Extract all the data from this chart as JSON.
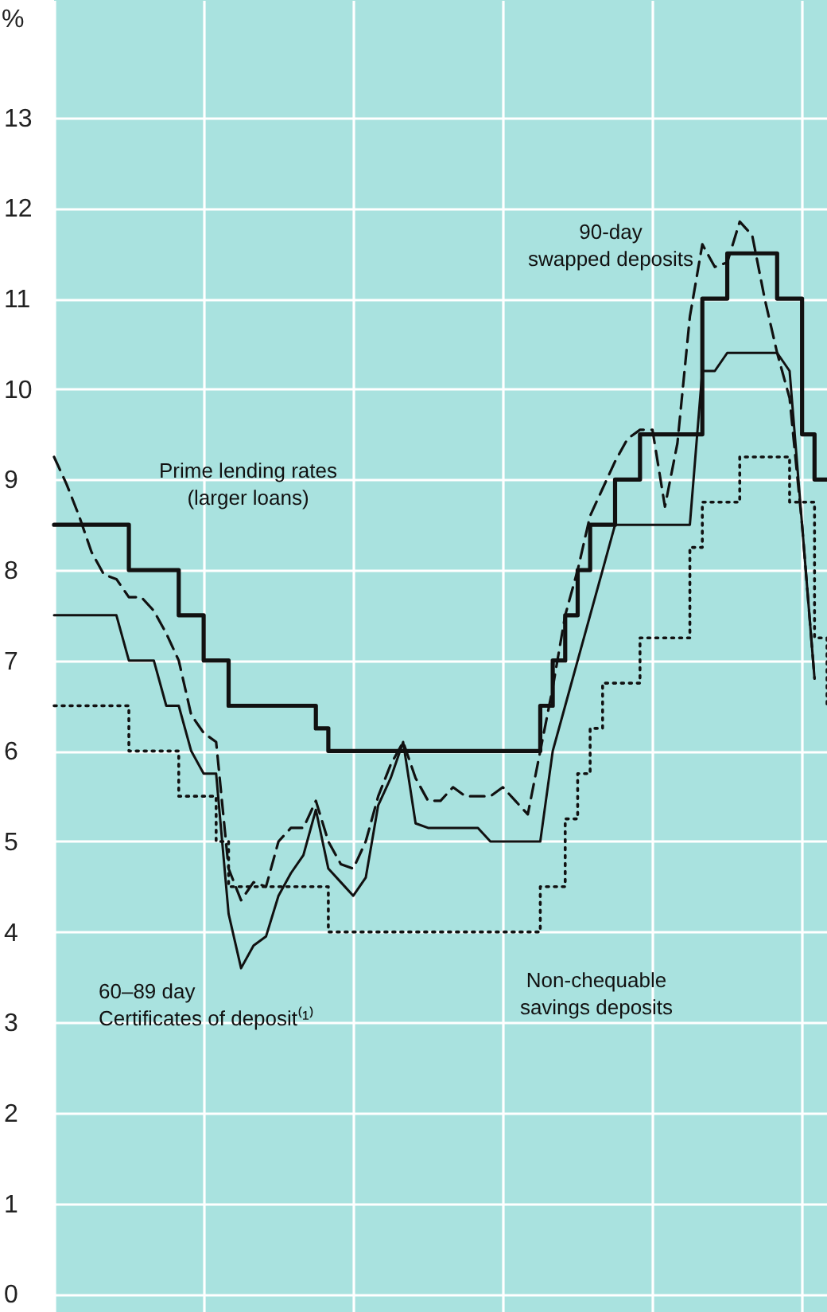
{
  "chart_data": {
    "type": "line",
    "ylabel": "%",
    "categories": [
      null,
      null,
      null,
      null,
      null,
      null,
      null,
      null,
      null,
      null,
      null,
      null,
      null,
      null,
      null,
      null,
      null,
      null,
      null,
      null,
      null,
      null,
      null,
      null,
      null,
      null,
      null,
      null,
      null,
      null,
      null,
      null,
      null,
      null,
      null,
      null,
      null,
      null,
      null,
      null,
      null,
      null,
      null,
      null,
      null,
      null,
      null,
      null,
      null,
      null,
      null,
      null,
      null,
      null,
      null,
      null,
      null,
      null,
      null,
      null,
      null,
      null,
      null
    ],
    "ylim": [
      -0.2,
      14.3
    ],
    "yticks": [
      0,
      1,
      2,
      3,
      4,
      5,
      6,
      7,
      8,
      9,
      10,
      11,
      12,
      13
    ],
    "grid": true,
    "tick_labels": "y",
    "series": [
      {
        "name": "Prime lending rates\n(larger loans)",
        "type": "step",
        "color": "#111111",
        "line_style": "solid",
        "values": [
          8.5,
          8.5,
          8.5,
          8.5,
          8.5,
          8.5,
          8,
          8,
          8,
          8,
          7.5,
          7.5,
          7,
          7,
          6.5,
          6.5,
          6.5,
          6.5,
          6.5,
          6.5,
          6.5,
          6.25,
          6,
          6,
          6,
          6,
          6,
          6,
          6,
          6,
          6,
          6,
          6,
          6,
          6,
          6,
          6,
          6,
          6,
          6.5,
          7,
          7.5,
          8,
          8.5,
          8.5,
          9,
          9,
          9.5,
          9.5,
          9.5,
          9.5,
          9.5,
          11,
          11,
          11.5,
          11.5,
          11.5,
          11.5,
          11,
          11,
          9.5,
          9,
          9
        ]
      },
      {
        "name": "90-day\nswapped deposits",
        "color": "#111111",
        "line_style": "dashed",
        "values": [
          9.25,
          8.95,
          8.6,
          8.2,
          7.95,
          7.9,
          7.7,
          7.7,
          7.55,
          7.3,
          7.0,
          6.4,
          6.2,
          6.1,
          4.7,
          4.35,
          4.55,
          4.5,
          5.0,
          5.15,
          5.15,
          5.45,
          5.0,
          4.75,
          4.7,
          5.0,
          5.5,
          5.85,
          6.1,
          5.7,
          5.45,
          5.45,
          5.6,
          5.5,
          5.5,
          5.5,
          5.6,
          5.45,
          5.3,
          6.0,
          6.7,
          7.5,
          8.0,
          8.6,
          8.9,
          9.2,
          9.45,
          9.55,
          9.55,
          8.7,
          9.4,
          10.8,
          11.6,
          11.35,
          11.4,
          11.85,
          11.7,
          11.0,
          10.4,
          9.9,
          8.5,
          6.8,
          null
        ]
      },
      {
        "name": "60–89 day\nCertificates of deposit⁽¹⁾",
        "color": "#111111",
        "line_style": "solid",
        "values": [
          7.5,
          7.5,
          7.5,
          7.5,
          7.5,
          7.5,
          7.0,
          7.0,
          7.0,
          6.5,
          6.5,
          6.0,
          5.75,
          5.75,
          4.2,
          3.6,
          3.85,
          3.95,
          4.4,
          4.65,
          4.85,
          5.35,
          4.7,
          4.55,
          4.4,
          4.6,
          5.4,
          5.7,
          6.1,
          5.2,
          5.15,
          5.15,
          5.15,
          5.15,
          5.15,
          5.0,
          5.0,
          5.0,
          5.0,
          5.0,
          6.0,
          6.5,
          7.0,
          7.5,
          8.0,
          8.5,
          8.5,
          8.5,
          8.5,
          8.5,
          8.5,
          8.5,
          10.2,
          10.2,
          10.4,
          10.4,
          10.4,
          10.4,
          10.4,
          10.2,
          8.5,
          6.8,
          null
        ]
      },
      {
        "name": "Non-chequable\nsavings deposits",
        "type": "step",
        "color": "#111111",
        "line_style": "dotted",
        "values": [
          6.5,
          6.5,
          6.5,
          6.5,
          6.5,
          6.5,
          6.0,
          6.0,
          6.0,
          6.0,
          5.5,
          5.5,
          5.5,
          5.0,
          4.5,
          4.5,
          4.5,
          4.5,
          4.5,
          4.5,
          4.5,
          4.5,
          4.0,
          4.0,
          4.0,
          4.0,
          4.0,
          4.0,
          4.0,
          4.0,
          4.0,
          4.0,
          4.0,
          4.0,
          4.0,
          4.0,
          4.0,
          4.0,
          4.0,
          4.5,
          4.5,
          5.25,
          5.75,
          6.25,
          6.75,
          6.75,
          6.75,
          7.25,
          7.25,
          7.25,
          7.25,
          8.25,
          8.75,
          8.75,
          8.75,
          9.25,
          9.25,
          9.25,
          9.25,
          8.75,
          8.75,
          7.25,
          6.5
        ]
      }
    ]
  }
}
